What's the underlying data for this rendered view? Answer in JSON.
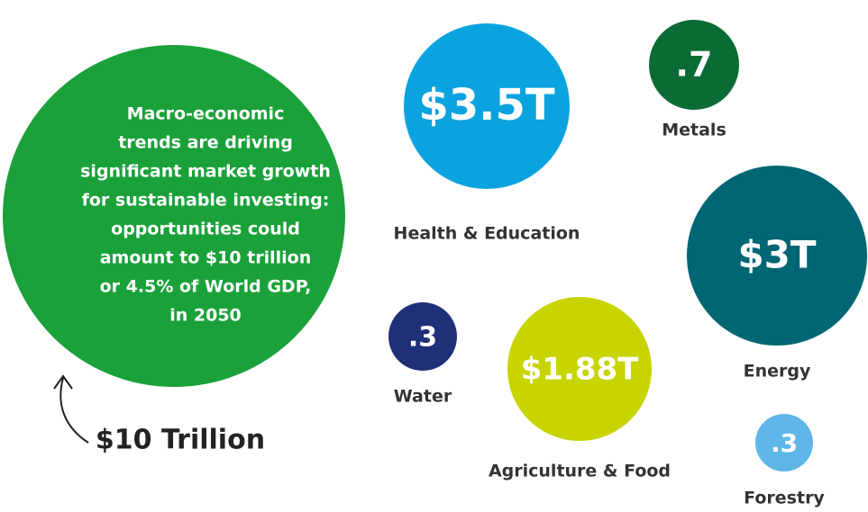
{
  "intro": {
    "color": "#1aa13a",
    "lines": [
      "Macro-economic",
      "trends are driving",
      "significant market growth",
      "for sustainable investing:",
      "opportunities could",
      "amount to $10 trillion",
      "or 4.5% of World GDP,",
      "in 2050"
    ]
  },
  "total": "$10 Trillion",
  "bubbles": [
    {
      "value_label": "$3.5T",
      "name": "Health & Education",
      "color": "#0aa3df"
    },
    {
      "value_label": ".7",
      "name": "Metals",
      "color": "#0b6b35"
    },
    {
      "value_label": "$3T",
      "name": "Energy",
      "color": "#006674"
    },
    {
      "value_label": ".3",
      "name": "Water",
      "color": "#1f2f78"
    },
    {
      "value_label": "$1.88T",
      "name": "Agriculture & Food",
      "color": "#c8d400"
    },
    {
      "value_label": ".3",
      "name": "Forestry",
      "color": "#5eb7e8"
    }
  ]
}
